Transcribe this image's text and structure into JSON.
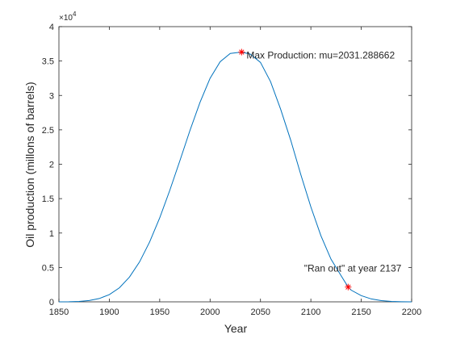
{
  "chart_data": {
    "type": "line",
    "title": "",
    "xlabel": "Year",
    "ylabel": "Oil production (millons of barrels)",
    "xlim": [
      1850,
      2200
    ],
    "ylim": [
      0,
      40000
    ],
    "xticks": [
      1850,
      1900,
      1950,
      2000,
      2050,
      2100,
      2150,
      2200
    ],
    "xtick_labels": [
      "1850",
      "1900",
      "1950",
      "2000",
      "2050",
      "2100",
      "2150",
      "2200"
    ],
    "yticks": [
      0,
      5000,
      10000,
      15000,
      20000,
      25000,
      30000,
      35000,
      40000
    ],
    "ytick_labels": [
      "0",
      "0.5",
      "1",
      "1.5",
      "2",
      "2.5",
      "3",
      "3.5",
      "4"
    ],
    "y_exponent_label": "×10",
    "y_exponent_power": "4",
    "grid": false,
    "series": [
      {
        "color": "#0072bd",
        "x": [
          1850,
          1860,
          1870,
          1880,
          1890,
          1900,
          1910,
          1920,
          1930,
          1940,
          1950,
          1960,
          1970,
          1980,
          1990,
          2000,
          2010,
          2020,
          2031.288662,
          2040,
          2050,
          2060,
          2070,
          2080,
          2090,
          2100,
          2110,
          2120,
          2130,
          2137,
          2140,
          2150,
          2160,
          2170,
          2180,
          2190,
          2200
        ],
        "y": [
          1,
          14,
          65,
          192,
          480,
          1050,
          2040,
          3600,
          5800,
          8700,
          12200,
          16200,
          20500,
          24900,
          29000,
          32500,
          34900,
          36100,
          36300,
          36000,
          34800,
          32000,
          28000,
          23500,
          18500,
          13800,
          9600,
          6200,
          3800,
          2150,
          1700,
          900,
          420,
          170,
          60,
          18,
          5
        ]
      }
    ],
    "markers": [
      {
        "x": 2031.288662,
        "y": 36300,
        "symbol": "*",
        "color": "#ff0000"
      },
      {
        "x": 2137,
        "y": 2150,
        "symbol": "*",
        "color": "#ff0000"
      }
    ],
    "annotations": [
      {
        "text": "Max Production: mu=2031.288662",
        "x": 2031.288662,
        "y": 36300
      },
      {
        "text": "\"Ran out\" at year 2137",
        "x": 2137,
        "y": 2150
      }
    ]
  }
}
